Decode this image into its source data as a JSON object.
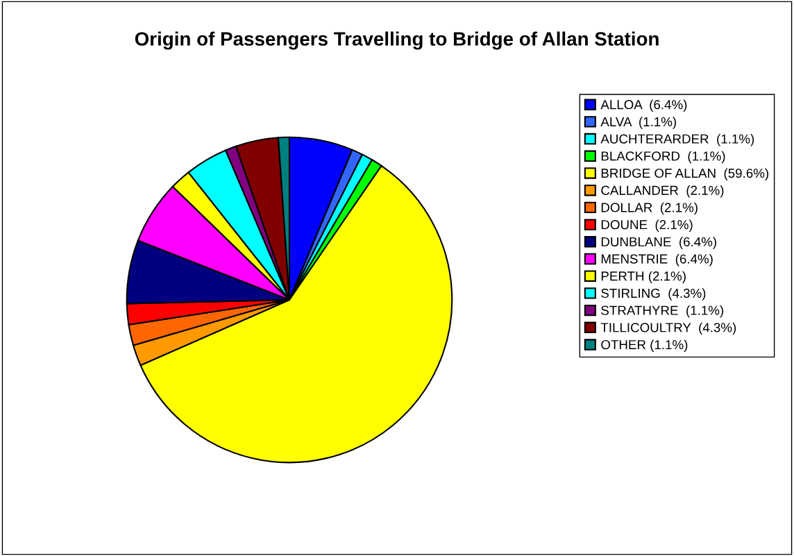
{
  "chart_data": {
    "type": "pie",
    "title": "Origin of Passengers Travelling to Bridge of Allan Station",
    "categories": [
      "ALLOA  (6.4%)",
      "ALVA  (1.1%)",
      "AUCHTERARDER  (1.1%)",
      "BLACKFORD  (1.1%)",
      "BRIDGE OF ALLAN  (59.6%)",
      "CALLANDER  (2.1%)",
      "DOLLAR  (2.1%)",
      "DOUNE  (2.1%)",
      "DUNBLANE  (6.4%)",
      "MENSTRIE  (6.4%)",
      "PERTH (2.1%)",
      "STIRLING  (4.3%)",
      "STRATHYRE  (1.1%)",
      "TILLICOULTRY  (4.3%)",
      "OTHER (1.1%)"
    ],
    "values": [
      6.4,
      1.1,
      1.1,
      1.1,
      59.6,
      2.1,
      2.1,
      2.1,
      6.4,
      6.4,
      2.1,
      4.3,
      1.1,
      4.3,
      1.1
    ],
    "colors": [
      "#0000ff",
      "#3366ff",
      "#00ffff",
      "#00ff00",
      "#ffff00",
      "#ff9900",
      "#ff6600",
      "#ff0000",
      "#000080",
      "#ff00ff",
      "#ffff00",
      "#00ffff",
      "#800080",
      "#800000",
      "#008080"
    ],
    "legend": "right"
  }
}
